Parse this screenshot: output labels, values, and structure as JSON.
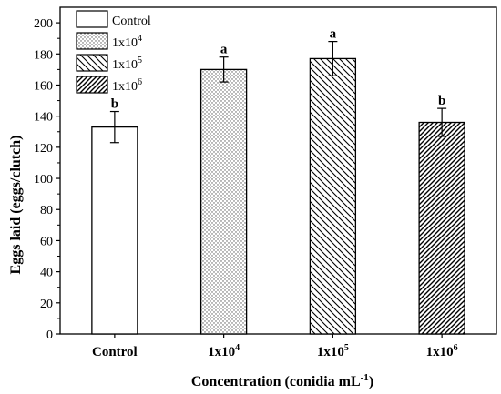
{
  "chart_data": {
    "type": "bar",
    "categories": [
      "Control",
      "1x10",
      "1x10",
      "1x10"
    ],
    "category_exponents": [
      "",
      "4",
      "5",
      "6"
    ],
    "values": [
      133,
      170,
      177,
      136
    ],
    "errors": [
      10,
      8,
      11,
      9
    ],
    "significance": [
      "b",
      "a",
      "a",
      "b"
    ],
    "patterns": [
      "none",
      "dots",
      "diag-back",
      "diag-fwd"
    ],
    "xlabel": "Concentration (conidia mL",
    "xlabel_exponent": "-1",
    "xlabel_suffix": ")",
    "ylabel": "Eggs laid (eggs/clutch)",
    "ylim": [
      0,
      210
    ],
    "yticks": [
      0,
      20,
      40,
      60,
      80,
      100,
      120,
      140,
      160,
      180,
      200
    ],
    "grid": false,
    "legend_position": "top-left",
    "legend": [
      {
        "label": "Control",
        "exponent": ""
      },
      {
        "label": "1x10",
        "exponent": "4"
      },
      {
        "label": "1x10",
        "exponent": "5"
      },
      {
        "label": "1x10",
        "exponent": "6"
      }
    ]
  }
}
